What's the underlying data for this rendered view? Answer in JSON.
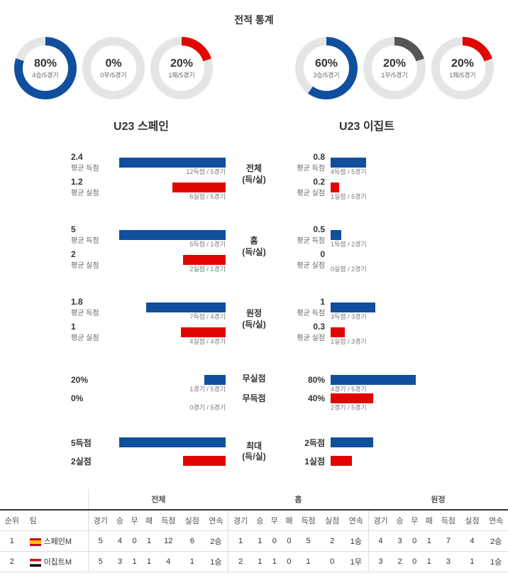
{
  "title": "전적 통계",
  "colors": {
    "blue": "#0f4f9e",
    "red": "#e10600",
    "gray": "#555555",
    "track": "#e5e5e5",
    "bg": "#ffffff"
  },
  "teams": {
    "left": "U23 스페인",
    "right": "U23 이집트"
  },
  "donuts": {
    "left": [
      {
        "pct": "80%",
        "sub": "4승/5경기",
        "value": 80,
        "color": "#0f4f9e"
      },
      {
        "pct": "0%",
        "sub": "0무/5경기",
        "value": 0,
        "color": "#555555"
      },
      {
        "pct": "20%",
        "sub": "1패/5경기",
        "value": 20,
        "color": "#e10600"
      }
    ],
    "right": [
      {
        "pct": "60%",
        "sub": "3승/5경기",
        "value": 60,
        "color": "#0f4f9e"
      },
      {
        "pct": "20%",
        "sub": "1무/5경기",
        "value": 20,
        "color": "#555555"
      },
      {
        "pct": "20%",
        "sub": "1패/5경기",
        "value": 20,
        "color": "#e10600"
      }
    ]
  },
  "stats": [
    {
      "center": "전체\n(득/실)",
      "left": [
        {
          "value": "2.4",
          "label": "평균 득점",
          "bar_pct": 100,
          "color": "#0f4f9e",
          "text": "12득점 / 5경기"
        },
        {
          "value": "1.2",
          "label": "평균 실점",
          "bar_pct": 50,
          "color": "#e10600",
          "text": "6실점 / 5경기"
        }
      ],
      "right": [
        {
          "value": "0.8",
          "label": "평균 득점",
          "bar_pct": 33,
          "color": "#0f4f9e",
          "text": "4득점 / 5경기"
        },
        {
          "value": "0.2",
          "label": "평균 실점",
          "bar_pct": 8,
          "color": "#e10600",
          "text": "1실점 / 5경기"
        }
      ]
    },
    {
      "center": "홈\n(득/실)",
      "left": [
        {
          "value": "5",
          "label": "평균 득점",
          "bar_pct": 100,
          "color": "#0f4f9e",
          "text": "5득점 / 1경기"
        },
        {
          "value": "2",
          "label": "평균 실점",
          "bar_pct": 40,
          "color": "#e10600",
          "text": "2실점 / 1경기"
        }
      ],
      "right": [
        {
          "value": "0.5",
          "label": "평균 득점",
          "bar_pct": 10,
          "color": "#0f4f9e",
          "text": "1득점 / 2경기"
        },
        {
          "value": "0",
          "label": "평균 실점",
          "bar_pct": 0,
          "color": "#e10600",
          "text": "0실점 / 2경기"
        }
      ]
    },
    {
      "center": "원정\n(득/실)",
      "left": [
        {
          "value": "1.8",
          "label": "평균 득점",
          "bar_pct": 75,
          "color": "#0f4f9e",
          "text": "7득점 / 4경기"
        },
        {
          "value": "1",
          "label": "평균 실점",
          "bar_pct": 42,
          "color": "#e10600",
          "text": "4실점 / 4경기"
        }
      ],
      "right": [
        {
          "value": "1",
          "label": "평균 득점",
          "bar_pct": 42,
          "color": "#0f4f9e",
          "text": "3득점 / 3경기"
        },
        {
          "value": "0.3",
          "label": "평균 실점",
          "bar_pct": 13,
          "color": "#e10600",
          "text": "1실점 / 3경기"
        }
      ]
    },
    {
      "center": "무실점\n무득점",
      "split_center": true,
      "left": [
        {
          "value": "20%",
          "label": "",
          "bar_pct": 20,
          "color": "#0f4f9e",
          "text": "1경기 / 5경기"
        },
        {
          "value": "0%",
          "label": "",
          "bar_pct": 0,
          "color": "#e10600",
          "text": "0경기 / 5경기"
        }
      ],
      "right": [
        {
          "value": "80%",
          "label": "",
          "bar_pct": 80,
          "color": "#0f4f9e",
          "text": "4경기 / 5경기"
        },
        {
          "value": "40%",
          "label": "",
          "bar_pct": 40,
          "color": "#e10600",
          "text": "2경기 / 5경기"
        }
      ]
    },
    {
      "center": "최대\n(득/실)",
      "left": [
        {
          "value": "5득점",
          "label": "",
          "bar_pct": 100,
          "color": "#0f4f9e",
          "text": ""
        },
        {
          "value": "2실점",
          "label": "",
          "bar_pct": 40,
          "color": "#e10600",
          "text": ""
        }
      ],
      "right": [
        {
          "value": "2득점",
          "label": "",
          "bar_pct": 40,
          "color": "#0f4f9e",
          "text": ""
        },
        {
          "value": "1실점",
          "label": "",
          "bar_pct": 20,
          "color": "#e10600",
          "text": ""
        }
      ]
    }
  ],
  "table": {
    "groups": [
      "전체",
      "홈",
      "원정"
    ],
    "rank_header": "순위",
    "team_header": "팀",
    "cols": [
      "경기",
      "승",
      "무",
      "패",
      "득점",
      "실점",
      "연속"
    ],
    "rows": [
      {
        "rank": "1",
        "team": "스페인M",
        "flag": "es",
        "all": [
          "5",
          "4",
          "0",
          "1",
          "12",
          "6",
          "2승"
        ],
        "home": [
          "1",
          "1",
          "0",
          "0",
          "5",
          "2",
          "1승"
        ],
        "away": [
          "4",
          "3",
          "0",
          "1",
          "7",
          "4",
          "2승"
        ]
      },
      {
        "rank": "2",
        "team": "이집트M",
        "flag": "eg",
        "all": [
          "5",
          "3",
          "1",
          "1",
          "4",
          "1",
          "1승"
        ],
        "home": [
          "2",
          "1",
          "1",
          "0",
          "1",
          "0",
          "1무"
        ],
        "away": [
          "3",
          "2",
          "0",
          "1",
          "3",
          "1",
          "1승"
        ]
      }
    ]
  }
}
